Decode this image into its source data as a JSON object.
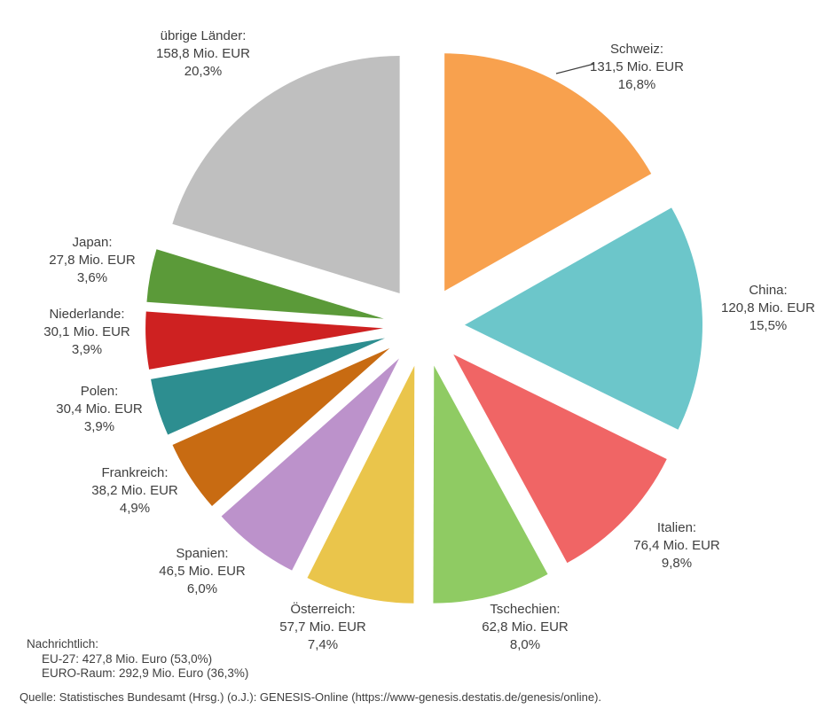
{
  "chart_data": {
    "type": "pie",
    "exploded": true,
    "direction": "clockwise",
    "start_angle_deg": 0,
    "unit": "Mio. EUR",
    "slices": [
      {
        "name_line": "Schweiz:",
        "value_line": "131,5 Mio. EUR",
        "percent_line": "16,8%",
        "value": 131.5,
        "percent": 16.8,
        "color": "#F8A14E"
      },
      {
        "name_line": "China:",
        "value_line": "120,8 Mio. EUR",
        "percent_line": "15,5%",
        "value": 120.8,
        "percent": 15.5,
        "color": "#6CC6CA"
      },
      {
        "name_line": "Italien:",
        "value_line": "76,4 Mio. EUR",
        "percent_line": "9,8%",
        "value": 76.4,
        "percent": 9.8,
        "color": "#F06565"
      },
      {
        "name_line": "Tschechien:",
        "value_line": "62,8 Mio. EUR",
        "percent_line": "8,0%",
        "value": 62.8,
        "percent": 8.0,
        "color": "#8FCB63"
      },
      {
        "name_line": "Österreich:",
        "value_line": "57,7 Mio. EUR",
        "percent_line": "7,4%",
        "value": 57.7,
        "percent": 7.4,
        "color": "#EAC54B"
      },
      {
        "name_line": "Spanien:",
        "value_line": "46,5 Mio. EUR",
        "percent_line": "6,0%",
        "value": 46.5,
        "percent": 6.0,
        "color": "#BC92CB"
      },
      {
        "name_line": "Frankreich:",
        "value_line": "38,2 Mio. EUR",
        "percent_line": "4,9%",
        "value": 38.2,
        "percent": 4.9,
        "color": "#C86B12"
      },
      {
        "name_line": "Polen:",
        "value_line": "30,4 Mio. EUR",
        "percent_line": "3,9%",
        "value": 30.4,
        "percent": 3.9,
        "color": "#2D8E90"
      },
      {
        "name_line": "Niederlande:",
        "value_line": "30,1 Mio. EUR",
        "percent_line": "3,9%",
        "value": 30.1,
        "percent": 3.9,
        "color": "#CE2121"
      },
      {
        "name_line": "Japan:",
        "value_line": "27,8 Mio. EUR",
        "percent_line": "3,6%",
        "value": 27.8,
        "percent": 3.6,
        "color": "#5B9A39"
      },
      {
        "name_line": "übrige Länder:",
        "value_line": "158,8 Mio. EUR",
        "percent_line": "20,3%",
        "value": 158.8,
        "percent": 20.3,
        "color": "#BFBFBF"
      }
    ]
  },
  "notes": {
    "heading": "Nachrichtlich:",
    "lines": [
      "EU-27: 427,8 Mio. Euro (53,0%)",
      "EURO-Raum: 292,9 Mio. Euro (36,3%)"
    ]
  },
  "source": "Quelle: Statistisches Bundesamt (Hrsg.) (o.J.): GENESIS-Online (https://www-genesis.destatis.de/genesis/online)."
}
